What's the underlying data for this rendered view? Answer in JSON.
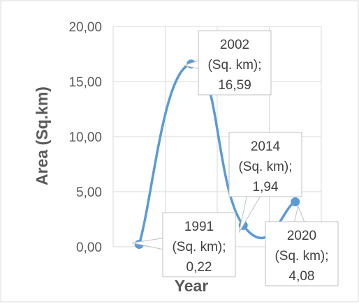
{
  "chart_data": {
    "type": "line",
    "title": "",
    "xlabel": "Year",
    "ylabel": "Area (Sq.km)",
    "ylim": [
      0,
      20
    ],
    "yticks": [
      "0,00",
      "5,00",
      "10,00",
      "15,00",
      "20,00"
    ],
    "grid": true,
    "series": [
      {
        "name": "Sq. km",
        "color": "#5b9bd5",
        "points": [
          {
            "x": 1991,
            "y": 0.22,
            "label": [
              "1991",
              "(Sq. km);",
              "0,22"
            ]
          },
          {
            "x": 2002,
            "y": 16.59,
            "label": [
              "2002",
              "(Sq. km);",
              "16,59"
            ]
          },
          {
            "x": 2014,
            "y": 1.94,
            "label": [
              "2014",
              "(Sq. km);",
              "1,94"
            ]
          },
          {
            "x": 2020,
            "y": 4.08,
            "label": [
              "2020",
              "(Sq. km);",
              "4,08"
            ]
          }
        ]
      }
    ]
  }
}
